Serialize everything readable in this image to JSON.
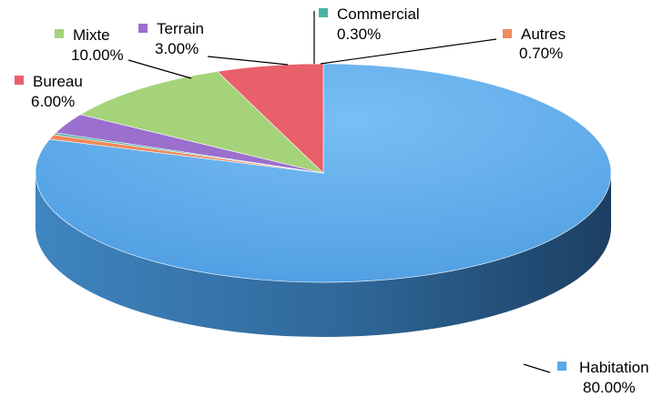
{
  "chart_data": {
    "type": "pie",
    "title": "",
    "three_d": true,
    "legend": "data-labels-with-markers",
    "slices": [
      {
        "name": "Habitation",
        "value": 80.0,
        "label": "80.00%",
        "color": "#5aa9ea"
      },
      {
        "name": "Autres",
        "value": 0.7,
        "label": "0.70%",
        "color": "#f08a5c"
      },
      {
        "name": "Commercial",
        "value": 0.3,
        "label": "0.30%",
        "color": "#4bb3a4"
      },
      {
        "name": "Terrain",
        "value": 3.0,
        "label": "3.00%",
        "color": "#9b6fce"
      },
      {
        "name": "Mixte",
        "value": 10.0,
        "label": "10.00%",
        "color": "#a5d37a"
      },
      {
        "name": "Bureau",
        "value": 6.0,
        "label": "6.00%",
        "color": "#e8606a"
      }
    ]
  }
}
